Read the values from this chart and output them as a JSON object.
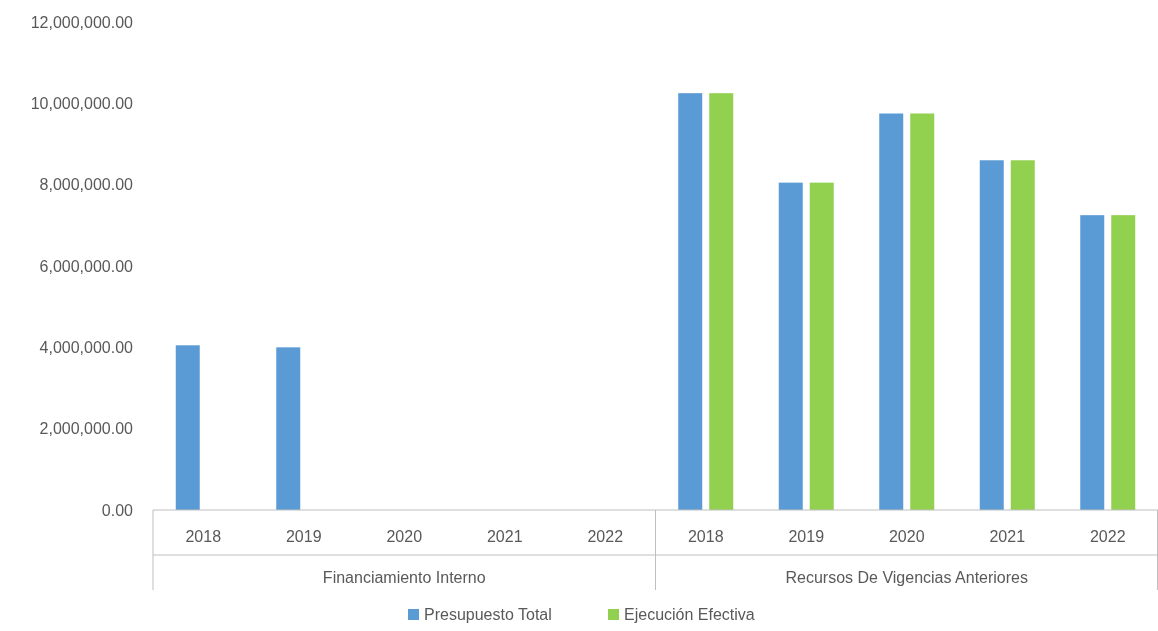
{
  "chart_data": {
    "type": "bar",
    "categories": [
      "2018",
      "2019",
      "2020",
      "2021",
      "2022",
      "2018",
      "2019",
      "2020",
      "2021",
      "2022"
    ],
    "series": [
      {
        "name": "Presupuesto Total",
        "color": "#5b9bd5",
        "values": [
          4050000,
          4000000,
          0,
          0,
          0,
          10250000,
          8050000,
          9750000,
          8600000,
          7250000
        ]
      },
      {
        "name": "Ejecución Efectiva",
        "color": "#92d050",
        "values": [
          0,
          0,
          0,
          0,
          0,
          10250000,
          8050000,
          9750000,
          8600000,
          7250000
        ]
      }
    ],
    "annotations": [
      "Financiamiento Interno",
      "Recursos De Vigencias Anteriores"
    ],
    "ylim": [
      0,
      12000000
    ],
    "yticks": [
      {
        "value": 0,
        "label": "0.00"
      },
      {
        "value": 2000000,
        "label": "2,000,000.00"
      },
      {
        "value": 4000000,
        "label": "4,000,000.00"
      },
      {
        "value": 6000000,
        "label": "6,000,000.00"
      },
      {
        "value": 8000000,
        "label": "8,000,000.00"
      },
      {
        "value": 10000000,
        "label": "10,000,000.00"
      },
      {
        "value": 12000000,
        "label": "12,000,000.00"
      }
    ],
    "grid": false,
    "legend": "bottom"
  }
}
